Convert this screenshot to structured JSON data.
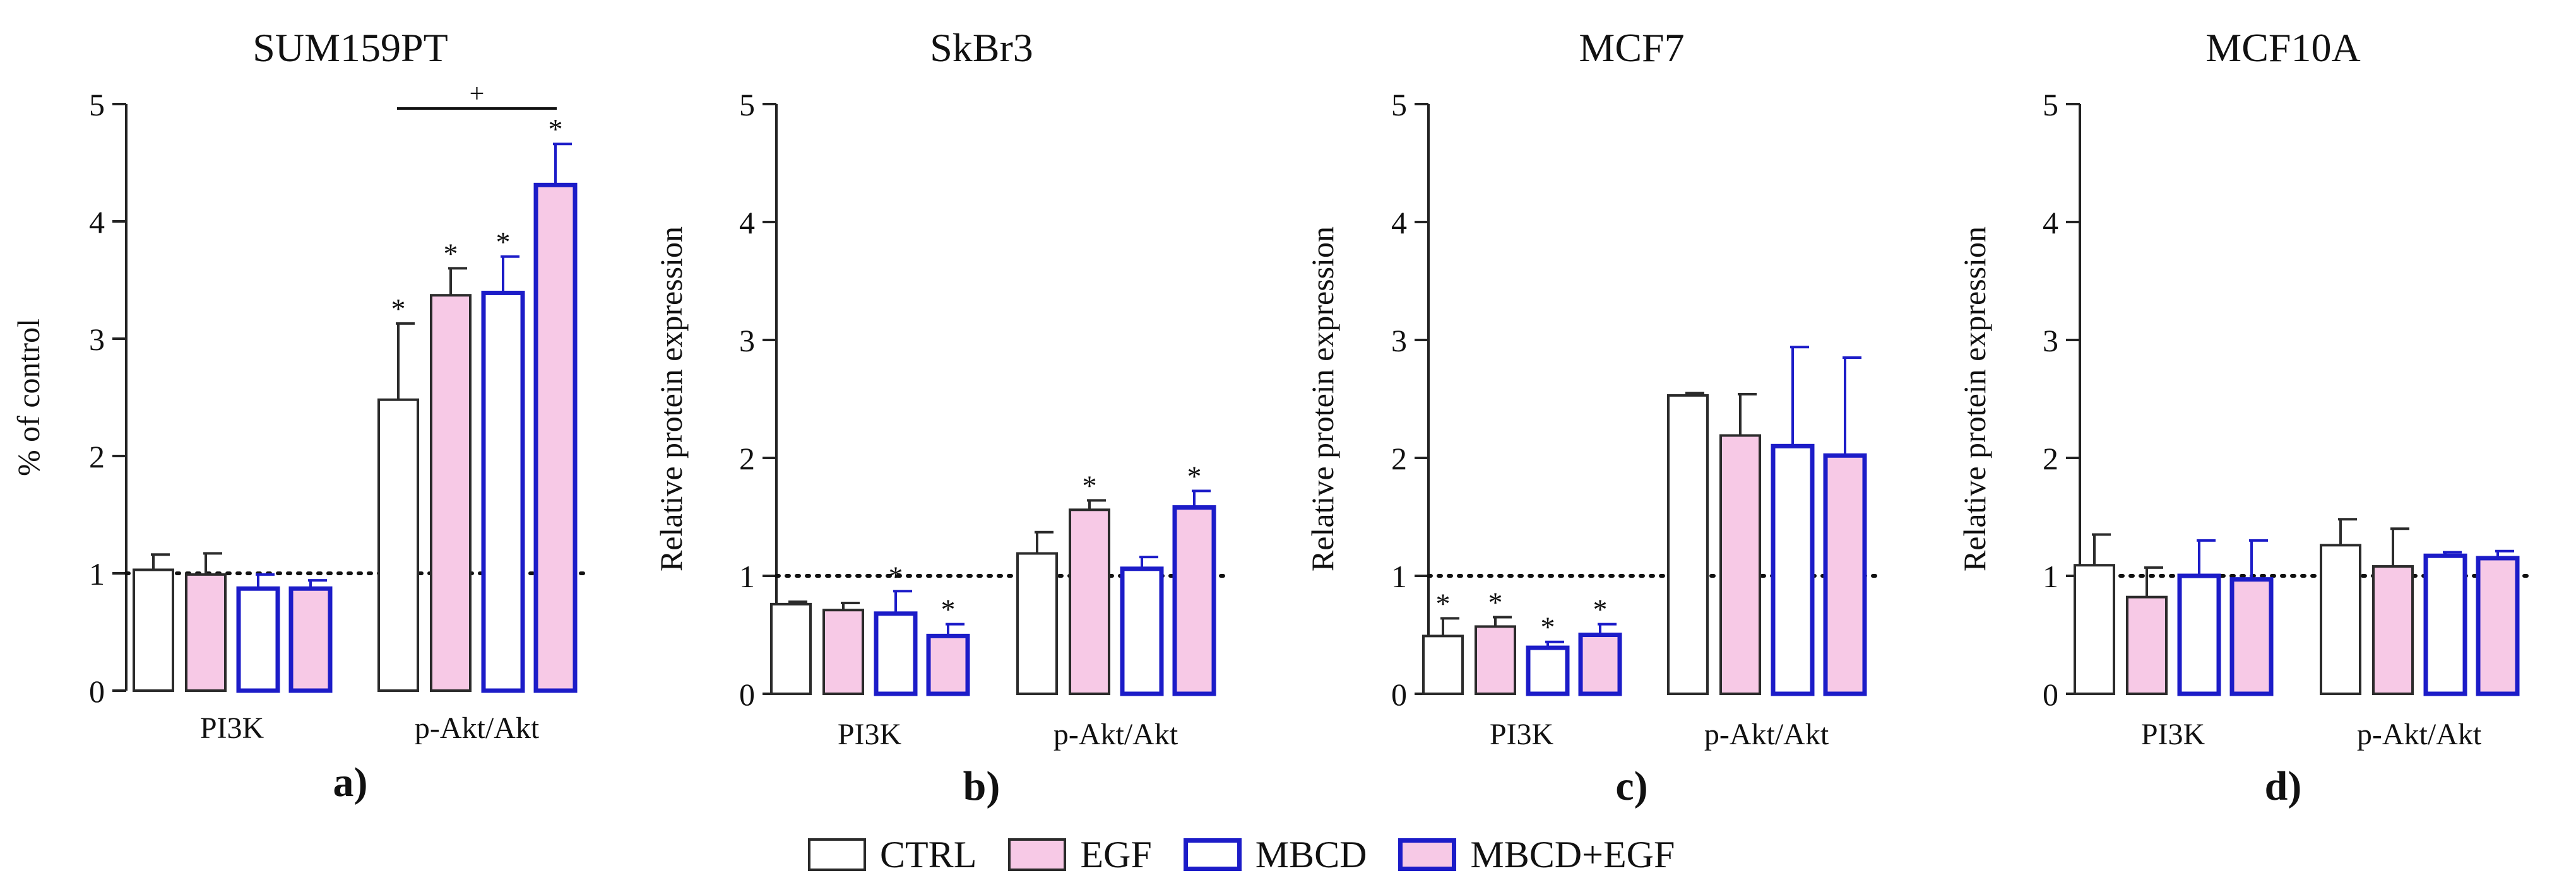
{
  "colors": {
    "ctrl_stroke": "#2b2b2b",
    "egf_fill": "#f7c9e6",
    "egf_stroke": "#2b2b2b",
    "mbcd_stroke": "#1c1cc8",
    "mbcd_egf_fill": "#f7c9e6",
    "mbcd_egf_stroke": "#1c1cc8"
  },
  "legend": [
    {
      "key": "ctrl",
      "label": "CTRL"
    },
    {
      "key": "egf",
      "label": "EGF"
    },
    {
      "key": "mbcd",
      "label": "MBCD"
    },
    {
      "key": "mbcd_egf",
      "label": "MBCD+EGF"
    }
  ],
  "chart_data": [
    {
      "type": "bar",
      "panel_label": "a)",
      "title": "SUM159PT",
      "ylabel": "% of control",
      "ylim": [
        0,
        5
      ],
      "yticks": [
        "0",
        "1",
        "2",
        "3",
        "4",
        "5"
      ],
      "reference_line": 1,
      "categories": [
        "PI3K",
        "p-Akt/Akt"
      ],
      "series": [
        {
          "name": "CTRL",
          "values": [
            1.03,
            2.48
          ],
          "errors": [
            0.13,
            0.65
          ],
          "sig": [
            "",
            "*"
          ]
        },
        {
          "name": "EGF",
          "values": [
            0.99,
            3.37
          ],
          "errors": [
            0.18,
            0.23
          ],
          "sig": [
            "",
            "*"
          ]
        },
        {
          "name": "MBCD",
          "values": [
            0.87,
            3.39
          ],
          "errors": [
            0.12,
            0.31
          ],
          "sig": [
            "",
            "*"
          ]
        },
        {
          "name": "MBCD+EGF",
          "values": [
            0.87,
            4.31
          ],
          "errors": [
            0.07,
            0.35
          ],
          "sig": [
            "",
            "*"
          ]
        }
      ],
      "bracket": {
        "symbol": "+",
        "from_series": 0,
        "to_series": 3,
        "category": 1,
        "y": 4.8
      }
    },
    {
      "type": "bar",
      "panel_label": "b)",
      "title": "SkBr3",
      "ylabel": "Relative protein expression",
      "ylim": [
        0,
        5
      ],
      "yticks": [
        "0",
        "1",
        "2",
        "3",
        "4",
        "5"
      ],
      "reference_line": 1,
      "categories": [
        "PI3K",
        "p-Akt/Akt"
      ],
      "series": [
        {
          "name": "CTRL",
          "values": [
            0.76,
            1.19
          ],
          "errors": [
            0.02,
            0.18
          ],
          "sig": [
            "",
            ""
          ]
        },
        {
          "name": "EGF",
          "values": [
            0.71,
            1.56
          ],
          "errors": [
            0.06,
            0.08
          ],
          "sig": [
            "",
            "*"
          ]
        },
        {
          "name": "MBCD",
          "values": [
            0.68,
            1.06
          ],
          "errors": [
            0.19,
            0.1
          ],
          "sig": [
            "*",
            ""
          ]
        },
        {
          "name": "MBCD+EGF",
          "values": [
            0.49,
            1.58
          ],
          "errors": [
            0.1,
            0.14
          ],
          "sig": [
            "*",
            "*"
          ]
        }
      ]
    },
    {
      "type": "bar",
      "panel_label": "c)",
      "title": "MCF7",
      "ylabel": "Relative protein expression",
      "ylim": [
        0,
        5
      ],
      "yticks": [
        "0",
        "1",
        "2",
        "3",
        "4",
        "5"
      ],
      "reference_line": 1,
      "categories": [
        "PI3K",
        "p-Akt/Akt"
      ],
      "series": [
        {
          "name": "CTRL",
          "values": [
            0.49,
            2.53
          ],
          "errors": [
            0.15,
            0.02
          ],
          "sig": [
            "*",
            ""
          ]
        },
        {
          "name": "EGF",
          "values": [
            0.57,
            2.19
          ],
          "errors": [
            0.08,
            0.35
          ],
          "sig": [
            "*",
            ""
          ]
        },
        {
          "name": "MBCD",
          "values": [
            0.39,
            2.1
          ],
          "errors": [
            0.05,
            0.84
          ],
          "sig": [
            "*",
            ""
          ]
        },
        {
          "name": "MBCD+EGF",
          "values": [
            0.5,
            2.02
          ],
          "errors": [
            0.09,
            0.83
          ],
          "sig": [
            "*",
            ""
          ]
        }
      ]
    },
    {
      "type": "bar",
      "panel_label": "d)",
      "title": "MCF10A",
      "ylabel": "Relative protein expression",
      "ylim": [
        0,
        5
      ],
      "yticks": [
        "0",
        "1",
        "2",
        "3",
        "4",
        "5"
      ],
      "reference_line": 1,
      "categories": [
        "PI3K",
        "p-Akt/Akt"
      ],
      "series": [
        {
          "name": "CTRL",
          "values": [
            1.09,
            1.26
          ],
          "errors": [
            0.26,
            0.22
          ],
          "sig": [
            "",
            ""
          ]
        },
        {
          "name": "EGF",
          "values": [
            0.82,
            1.08
          ],
          "errors": [
            0.25,
            0.32
          ],
          "sig": [
            "",
            ""
          ]
        },
        {
          "name": "MBCD",
          "values": [
            1.0,
            1.17
          ],
          "errors": [
            0.3,
            0.03
          ],
          "sig": [
            "",
            ""
          ]
        },
        {
          "name": "MBCD+EGF",
          "values": [
            0.97,
            1.15
          ],
          "errors": [
            0.33,
            0.06
          ],
          "sig": [
            "",
            ""
          ]
        }
      ]
    }
  ]
}
